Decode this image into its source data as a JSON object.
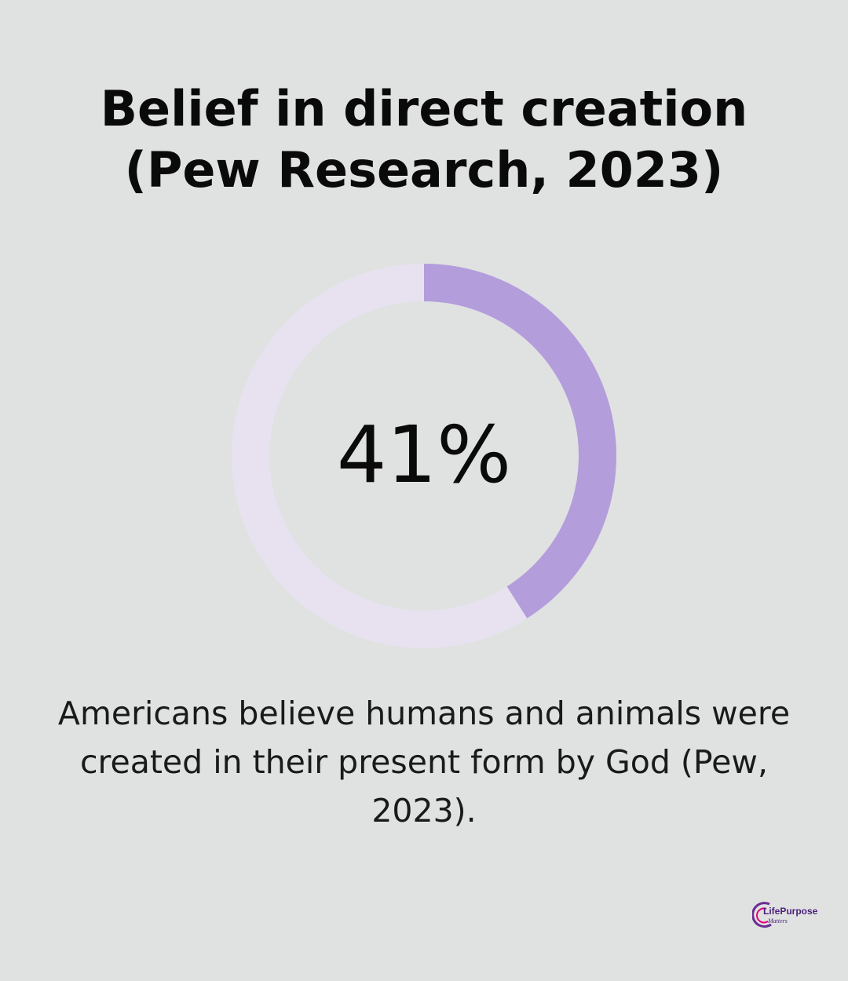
{
  "chart_data": {
    "type": "pie",
    "title_lines": [
      "Belief in direct creation",
      "(Pew Research, 2023)"
    ],
    "value": 41,
    "value_label": "41%",
    "max": 100,
    "caption_lines": [
      "Americans believe humans and animals were",
      "created in their present form by God (Pew,",
      "2023)."
    ],
    "colors": {
      "filled": "#b39ddb",
      "track": "#e8e2f0"
    }
  },
  "logo": {
    "name": "LifePurpose",
    "sub": "Matters"
  }
}
